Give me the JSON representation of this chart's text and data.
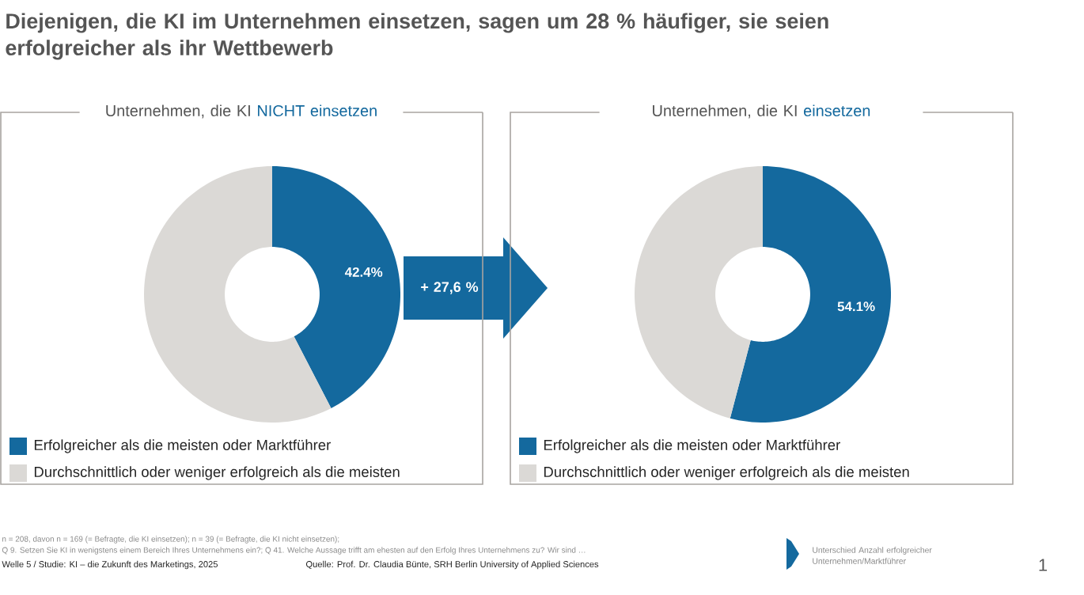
{
  "chart_data": [
    {
      "type": "other",
      "title": "Diejenigen, die KI im Unternehmen einsetzen, sagen um 28 % häufiger, sie seien erfolgreicher als ihr Wettbewerb",
      "annotations": [
        "+ 27,6 %",
        "n = 208, davon n = 169 (= Befragte, die KI einsetzen); n = 39 (= Befragte, die KI nicht einsetzen);",
        "Q 9. Setzen Sie KI in wenigstens einem Bereich Ihres Unternehmens ein?; Q 41. Welche Aussage trifft am ehesten auf den Erfolg Ihres Unternehmens zu? Wir sind …",
        "Welle 5 / Studie: KI – die Zukunft des Marketings, 2025",
        "Quelle: Prof. Dr. Claudia Bünte, SRH Berlin University of Applied Sciences",
        "Unterschied Anzahl erfolgreicher Unternehmen/Marktführer",
        "1"
      ]
    },
    {
      "type": "donut",
      "title": "Unternehmen, die KI",
      "subtitle": "NICHT einsetzen",
      "categories": [
        "Erfolgreicher als die meisten oder Marktführer",
        "Durchschnittlich oder weniger erfolgreich als die meisten"
      ],
      "values": [
        42.4,
        57.6
      ],
      "colors": [
        "#14699e",
        "#dbd9d6"
      ],
      "value_labels": [
        "42.4%",
        null
      ],
      "legend": "bottom"
    },
    {
      "type": "donut",
      "title": "Unternehmen, die KI",
      "subtitle": "einsetzen",
      "categories": [
        "Erfolgreicher als die meisten oder Marktführer",
        "Durchschnittlich oder weniger erfolgreich als die meisten"
      ],
      "values": [
        54.1,
        45.9
      ],
      "colors": [
        "#14699e",
        "#dbd9d6"
      ],
      "value_labels": [
        "54.1%",
        null
      ],
      "legend": "bottom"
    }
  ]
}
